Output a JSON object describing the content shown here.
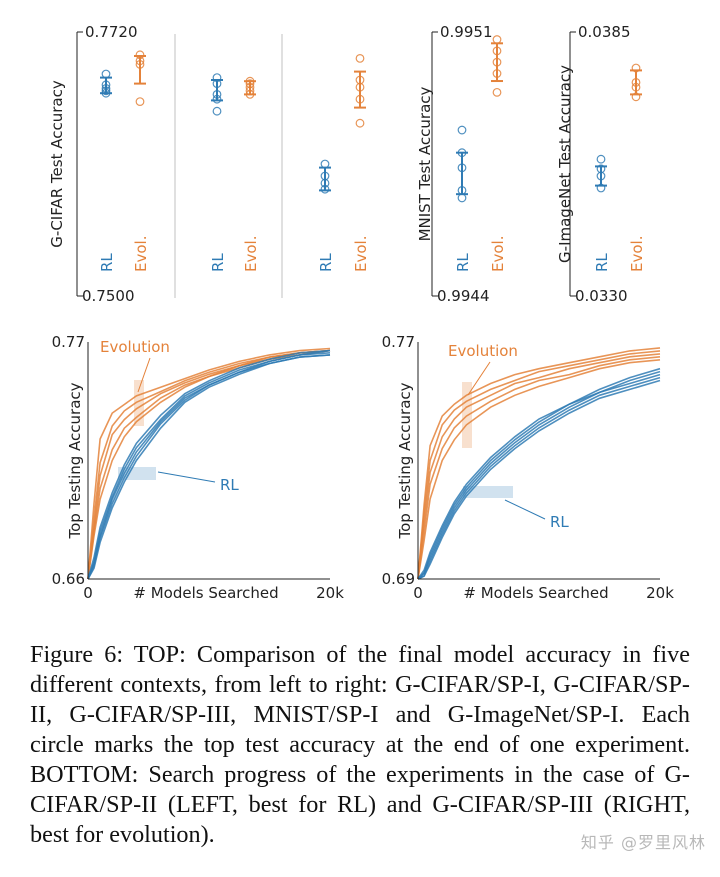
{
  "colors": {
    "rl": "#2f7bb4",
    "evol": "#e4823a",
    "axis": "#222222",
    "divider": "#cccccc"
  },
  "chart_data": [
    {
      "type": "scatter",
      "name": "G-CIFAR/SP-I",
      "ylabel": "G-CIFAR Test Accuracy",
      "ylim": [
        0.75,
        0.772
      ],
      "ytick_labels": [
        "0.7720",
        "0.7500"
      ],
      "categories": [
        "RL",
        "Evol."
      ],
      "series": [
        {
          "name": "RL",
          "points": [
            0.7685,
            0.7676,
            0.7673,
            0.7671,
            0.7669
          ],
          "mean": 0.7675,
          "err": [
            0.7669,
            0.7682
          ]
        },
        {
          "name": "Evol.",
          "points": [
            0.7701,
            0.7696,
            0.7693,
            0.7662
          ],
          "mean": 0.7688,
          "err": [
            0.7677,
            0.77
          ]
        }
      ]
    },
    {
      "type": "scatter",
      "name": "G-CIFAR/SP-II",
      "ylim": [
        0.75,
        0.772
      ],
      "categories": [
        "RL",
        "Evol."
      ],
      "series": [
        {
          "name": "RL",
          "points": [
            0.7682,
            0.7677,
            0.7668,
            0.7664,
            0.7654
          ],
          "mean": 0.767,
          "err": [
            0.7663,
            0.768
          ]
        },
        {
          "name": "Evol.",
          "points": [
            0.7679,
            0.7677,
            0.7674,
            0.7671,
            0.7668
          ],
          "mean": 0.7673,
          "err": [
            0.7668,
            0.7679
          ]
        }
      ]
    },
    {
      "type": "scatter",
      "name": "G-CIFAR/SP-III",
      "ylim": [
        0.75,
        0.772
      ],
      "categories": [
        "RL",
        "Evol."
      ],
      "series": [
        {
          "name": "RL",
          "points": [
            0.761,
            0.76,
            0.7594,
            0.7589
          ],
          "mean": 0.7598,
          "err": [
            0.7588,
            0.7607
          ]
        },
        {
          "name": "Evol.",
          "points": [
            0.7698,
            0.768,
            0.7674,
            0.7664,
            0.7644
          ],
          "mean": 0.7671,
          "err": [
            0.7657,
            0.7687
          ]
        }
      ]
    },
    {
      "type": "scatter",
      "name": "MNIST/SP-I",
      "ylabel": "MNIST Test Accuracy",
      "ylim": [
        0.9944,
        0.9951
      ],
      "ytick_labels": [
        "0.9951",
        "0.9944"
      ],
      "categories": [
        "RL",
        "Evol."
      ],
      "series": [
        {
          "name": "RL",
          "points": [
            0.99484,
            0.99478,
            0.99474,
            0.99468,
            0.99466
          ],
          "mean": 0.99472,
          "err": [
            0.99467,
            0.99478
          ]
        },
        {
          "name": "Evol.",
          "points": [
            0.99508,
            0.99505,
            0.99502,
            0.99499,
            0.99494
          ],
          "mean": 0.99502,
          "err": [
            0.99497,
            0.99507
          ]
        }
      ]
    },
    {
      "type": "scatter",
      "name": "G-ImageNet/SP-I",
      "ylabel": "G-ImageNet Test Accuracy",
      "ylim": [
        0.033,
        0.0385
      ],
      "ytick_labels": [
        "0.0385",
        "0.0330"
      ],
      "categories": [
        "RL",
        "Evol."
      ],
      "series": [
        {
          "name": "RL",
          "points": [
            0.03585,
            0.03565,
            0.0355,
            0.03525
          ],
          "mean": 0.0355,
          "err": [
            0.0353,
            0.0357
          ]
        },
        {
          "name": "Evol.",
          "points": [
            0.03775,
            0.03745,
            0.03735,
            0.03715
          ],
          "mean": 0.0374,
          "err": [
            0.0372,
            0.0377
          ]
        }
      ]
    },
    {
      "type": "line",
      "name": "G-CIFAR/SP-II search progress",
      "xlabel": "# Models Searched",
      "ylabel": "Top Testing Accuracy",
      "xlim": [
        0,
        20000
      ],
      "ylim": [
        0.66,
        0.77
      ],
      "x_tick_labels": [
        "0",
        "20k"
      ],
      "y_tick_labels": [
        "0.77",
        "0.66"
      ],
      "annotations": [
        "Evolution",
        "RL"
      ],
      "x": [
        0,
        500,
        1000,
        2000,
        3000,
        4000,
        6000,
        8000,
        10000,
        12500,
        15000,
        17500,
        20000
      ],
      "series": [
        {
          "name": "Evolution",
          "values": [
            0.66,
            0.695,
            0.725,
            0.737,
            0.741,
            0.745,
            0.749,
            0.753,
            0.757,
            0.761,
            0.764,
            0.766,
            0.767
          ]
        },
        {
          "name": "Evolution",
          "values": [
            0.66,
            0.688,
            0.714,
            0.731,
            0.738,
            0.742,
            0.747,
            0.752,
            0.756,
            0.76,
            0.763,
            0.765,
            0.766
          ]
        },
        {
          "name": "Evolution",
          "values": [
            0.66,
            0.684,
            0.708,
            0.727,
            0.734,
            0.739,
            0.746,
            0.751,
            0.755,
            0.759,
            0.763,
            0.765,
            0.766
          ]
        },
        {
          "name": "Evolution",
          "values": [
            0.66,
            0.682,
            0.702,
            0.72,
            0.73,
            0.735,
            0.744,
            0.75,
            0.754,
            0.759,
            0.762,
            0.765,
            0.766
          ]
        },
        {
          "name": "Evolution",
          "values": [
            0.66,
            0.68,
            0.697,
            0.715,
            0.726,
            0.733,
            0.742,
            0.749,
            0.754,
            0.758,
            0.762,
            0.764,
            0.766
          ]
        },
        {
          "name": "RL",
          "values": [
            0.66,
            0.67,
            0.684,
            0.7,
            0.713,
            0.723,
            0.736,
            0.746,
            0.752,
            0.758,
            0.762,
            0.765,
            0.766
          ]
        },
        {
          "name": "RL",
          "values": [
            0.66,
            0.668,
            0.682,
            0.698,
            0.711,
            0.721,
            0.734,
            0.745,
            0.751,
            0.757,
            0.761,
            0.764,
            0.765
          ]
        },
        {
          "name": "RL",
          "values": [
            0.66,
            0.667,
            0.68,
            0.697,
            0.709,
            0.719,
            0.733,
            0.744,
            0.75,
            0.756,
            0.761,
            0.764,
            0.766
          ]
        },
        {
          "name": "RL",
          "values": [
            0.66,
            0.666,
            0.679,
            0.695,
            0.707,
            0.717,
            0.732,
            0.743,
            0.75,
            0.756,
            0.76,
            0.763,
            0.764
          ]
        },
        {
          "name": "RL",
          "values": [
            0.66,
            0.665,
            0.677,
            0.693,
            0.705,
            0.715,
            0.73,
            0.742,
            0.749,
            0.755,
            0.76,
            0.763,
            0.764
          ]
        }
      ]
    },
    {
      "type": "line",
      "name": "G-CIFAR/SP-III search progress",
      "xlabel": "# Models Searched",
      "ylabel": "Top Testing Accuracy",
      "xlim": [
        0,
        20000
      ],
      "ylim": [
        0.69,
        0.77
      ],
      "x_tick_labels": [
        "0",
        "20k"
      ],
      "y_tick_labels": [
        "0.77",
        "0.69"
      ],
      "annotations": [
        "Evolution",
        "RL"
      ],
      "x": [
        0,
        500,
        1000,
        2000,
        3000,
        4000,
        6000,
        8000,
        10000,
        12500,
        15000,
        17500,
        20000
      ],
      "series": [
        {
          "name": "Evolution",
          "values": [
            0.69,
            0.715,
            0.735,
            0.745,
            0.749,
            0.752,
            0.756,
            0.759,
            0.761,
            0.763,
            0.765,
            0.767,
            0.768
          ]
        },
        {
          "name": "Evolution",
          "values": [
            0.69,
            0.712,
            0.73,
            0.742,
            0.747,
            0.75,
            0.754,
            0.757,
            0.76,
            0.762,
            0.764,
            0.766,
            0.767
          ]
        },
        {
          "name": "Evolution",
          "values": [
            0.69,
            0.709,
            0.726,
            0.738,
            0.744,
            0.748,
            0.752,
            0.756,
            0.758,
            0.761,
            0.763,
            0.765,
            0.766
          ]
        },
        {
          "name": "Evolution",
          "values": [
            0.69,
            0.706,
            0.722,
            0.734,
            0.741,
            0.745,
            0.75,
            0.754,
            0.757,
            0.759,
            0.762,
            0.764,
            0.765
          ]
        },
        {
          "name": "Evolution",
          "values": [
            0.69,
            0.703,
            0.717,
            0.73,
            0.737,
            0.742,
            0.748,
            0.752,
            0.755,
            0.758,
            0.761,
            0.763,
            0.764
          ]
        },
        {
          "name": "RL",
          "values": [
            0.69,
            0.693,
            0.699,
            0.708,
            0.716,
            0.722,
            0.731,
            0.738,
            0.744,
            0.749,
            0.754,
            0.758,
            0.761
          ]
        },
        {
          "name": "RL",
          "values": [
            0.69,
            0.692,
            0.698,
            0.707,
            0.715,
            0.721,
            0.73,
            0.737,
            0.743,
            0.749,
            0.753,
            0.757,
            0.76
          ]
        },
        {
          "name": "RL",
          "values": [
            0.69,
            0.692,
            0.697,
            0.706,
            0.714,
            0.72,
            0.729,
            0.736,
            0.742,
            0.748,
            0.753,
            0.756,
            0.759
          ]
        },
        {
          "name": "RL",
          "values": [
            0.69,
            0.691,
            0.696,
            0.705,
            0.713,
            0.719,
            0.728,
            0.735,
            0.741,
            0.747,
            0.752,
            0.755,
            0.758
          ]
        },
        {
          "name": "RL",
          "values": [
            0.69,
            0.691,
            0.695,
            0.704,
            0.712,
            0.718,
            0.727,
            0.734,
            0.74,
            0.746,
            0.751,
            0.754,
            0.757
          ]
        }
      ]
    }
  ],
  "caption": "Figure 6: TOP: Comparison of the final model accuracy in five different contexts, from left to right: G-CIFAR/SP-I, G-CIFAR/SP-II, G-CIFAR/SP-III, MNIST/SP-I and G-ImageNet/SP-I. Each circle marks the top test accuracy at the end of one experiment. BOTTOM: Search progress of the experiments in the case of G-CIFAR/SP-II (LEFT, best for RL) and G-CIFAR/SP-III (RIGHT, best for evolution).",
  "watermark": "知乎 @罗里风林"
}
